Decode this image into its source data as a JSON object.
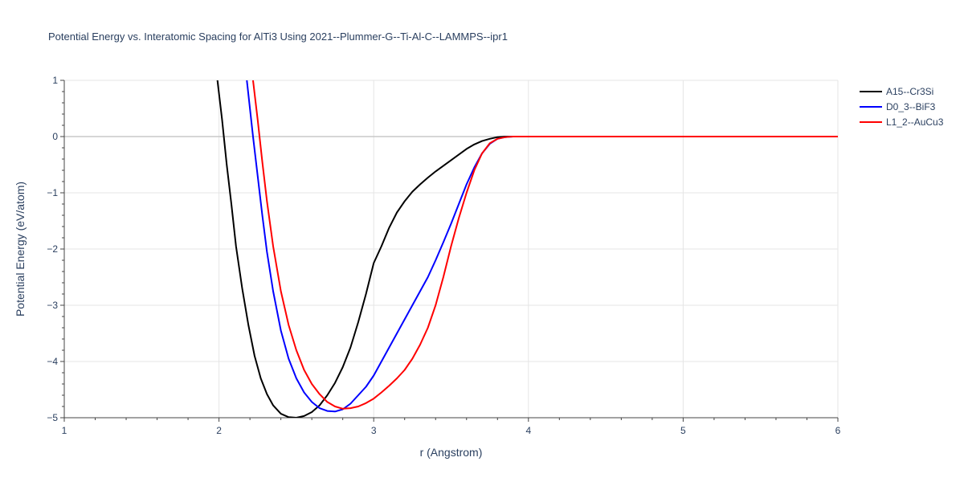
{
  "chart_data": {
    "type": "line",
    "title": "Potential Energy vs. Interatomic Spacing for AlTi3 Using 2021--Plummer-G--Ti-Al-C--LAMMPS--ipr1",
    "xlabel": "r (Angstrom)",
    "ylabel": "Potential Energy (eV/atom)",
    "xlim": [
      1,
      6
    ],
    "ylim": [
      -5,
      1
    ],
    "xticks": [
      1,
      2,
      3,
      4,
      5,
      6
    ],
    "yticks": [
      1,
      0,
      -1,
      -2,
      -3,
      -4,
      -5
    ],
    "xtick_labels": [
      "1",
      "2",
      "3",
      "4",
      "5",
      "6"
    ],
    "ytick_labels": [
      "1",
      "0",
      "−1",
      "−2",
      "−3",
      "−4",
      "−5"
    ],
    "grid": true,
    "legend_position": "top-right",
    "series": [
      {
        "name": "A15--Cr3Si",
        "color": "#000000",
        "x": [
          1.99,
          2.02,
          2.05,
          2.08,
          2.11,
          2.15,
          2.19,
          2.23,
          2.27,
          2.31,
          2.35,
          2.4,
          2.45,
          2.5,
          2.55,
          2.6,
          2.65,
          2.7,
          2.75,
          2.8,
          2.85,
          2.9,
          2.95,
          3.0,
          3.05,
          3.1,
          3.15,
          3.2,
          3.25,
          3.3,
          3.35,
          3.4,
          3.5,
          3.6,
          3.65,
          3.7,
          3.75,
          3.8,
          3.85,
          3.9,
          4.0,
          4.5,
          5.0,
          5.5,
          6.0
        ],
        "y": [
          1.0,
          0.3,
          -0.5,
          -1.2,
          -1.95,
          -2.7,
          -3.35,
          -3.9,
          -4.3,
          -4.58,
          -4.78,
          -4.93,
          -4.99,
          -5.0,
          -4.97,
          -4.9,
          -4.78,
          -4.6,
          -4.38,
          -4.1,
          -3.75,
          -3.3,
          -2.8,
          -2.25,
          -1.95,
          -1.62,
          -1.35,
          -1.15,
          -0.98,
          -0.85,
          -0.73,
          -0.62,
          -0.42,
          -0.22,
          -0.14,
          -0.08,
          -0.04,
          -0.01,
          0.0,
          0.0,
          0.0,
          0.0,
          0.0,
          0.0,
          0.0
        ]
      },
      {
        "name": "D0_3--BiF3",
        "color": "#0000ff",
        "x": [
          2.18,
          2.2,
          2.22,
          2.25,
          2.28,
          2.31,
          2.35,
          2.4,
          2.45,
          2.5,
          2.55,
          2.6,
          2.65,
          2.7,
          2.75,
          2.8,
          2.85,
          2.9,
          2.95,
          3.0,
          3.05,
          3.1,
          3.15,
          3.2,
          3.25,
          3.3,
          3.35,
          3.4,
          3.45,
          3.5,
          3.55,
          3.6,
          3.65,
          3.7,
          3.75,
          3.8,
          3.85,
          3.9,
          4.0,
          4.5,
          5.0,
          5.5,
          6.0
        ],
        "y": [
          1.0,
          0.5,
          0.0,
          -0.7,
          -1.4,
          -2.05,
          -2.75,
          -3.45,
          -3.95,
          -4.3,
          -4.55,
          -4.72,
          -4.83,
          -4.88,
          -4.89,
          -4.85,
          -4.75,
          -4.6,
          -4.45,
          -4.25,
          -4.0,
          -3.75,
          -3.5,
          -3.25,
          -3.0,
          -2.75,
          -2.5,
          -2.2,
          -1.88,
          -1.55,
          -1.2,
          -0.85,
          -0.55,
          -0.3,
          -0.13,
          -0.04,
          -0.01,
          0.0,
          0.0,
          0.0,
          0.0,
          0.0,
          0.0
        ]
      },
      {
        "name": "L1_2--AuCu3",
        "color": "#ff0000",
        "x": [
          2.22,
          2.25,
          2.28,
          2.31,
          2.35,
          2.4,
          2.45,
          2.5,
          2.55,
          2.6,
          2.65,
          2.7,
          2.75,
          2.8,
          2.85,
          2.9,
          2.95,
          3.0,
          3.05,
          3.1,
          3.15,
          3.2,
          3.25,
          3.3,
          3.35,
          3.4,
          3.45,
          3.5,
          3.55,
          3.6,
          3.65,
          3.7,
          3.75,
          3.8,
          3.85,
          3.9,
          4.0,
          4.5,
          5.0,
          5.5,
          6.0
        ],
        "y": [
          1.0,
          0.3,
          -0.45,
          -1.15,
          -1.95,
          -2.75,
          -3.35,
          -3.8,
          -4.15,
          -4.4,
          -4.58,
          -4.72,
          -4.8,
          -4.84,
          -4.83,
          -4.8,
          -4.74,
          -4.66,
          -4.55,
          -4.43,
          -4.3,
          -4.15,
          -3.95,
          -3.7,
          -3.4,
          -3.0,
          -2.5,
          -1.95,
          -1.45,
          -1.0,
          -0.6,
          -0.3,
          -0.12,
          -0.04,
          -0.01,
          0.0,
          0.0,
          0.0,
          0.0,
          0.0,
          0.0
        ]
      }
    ]
  }
}
